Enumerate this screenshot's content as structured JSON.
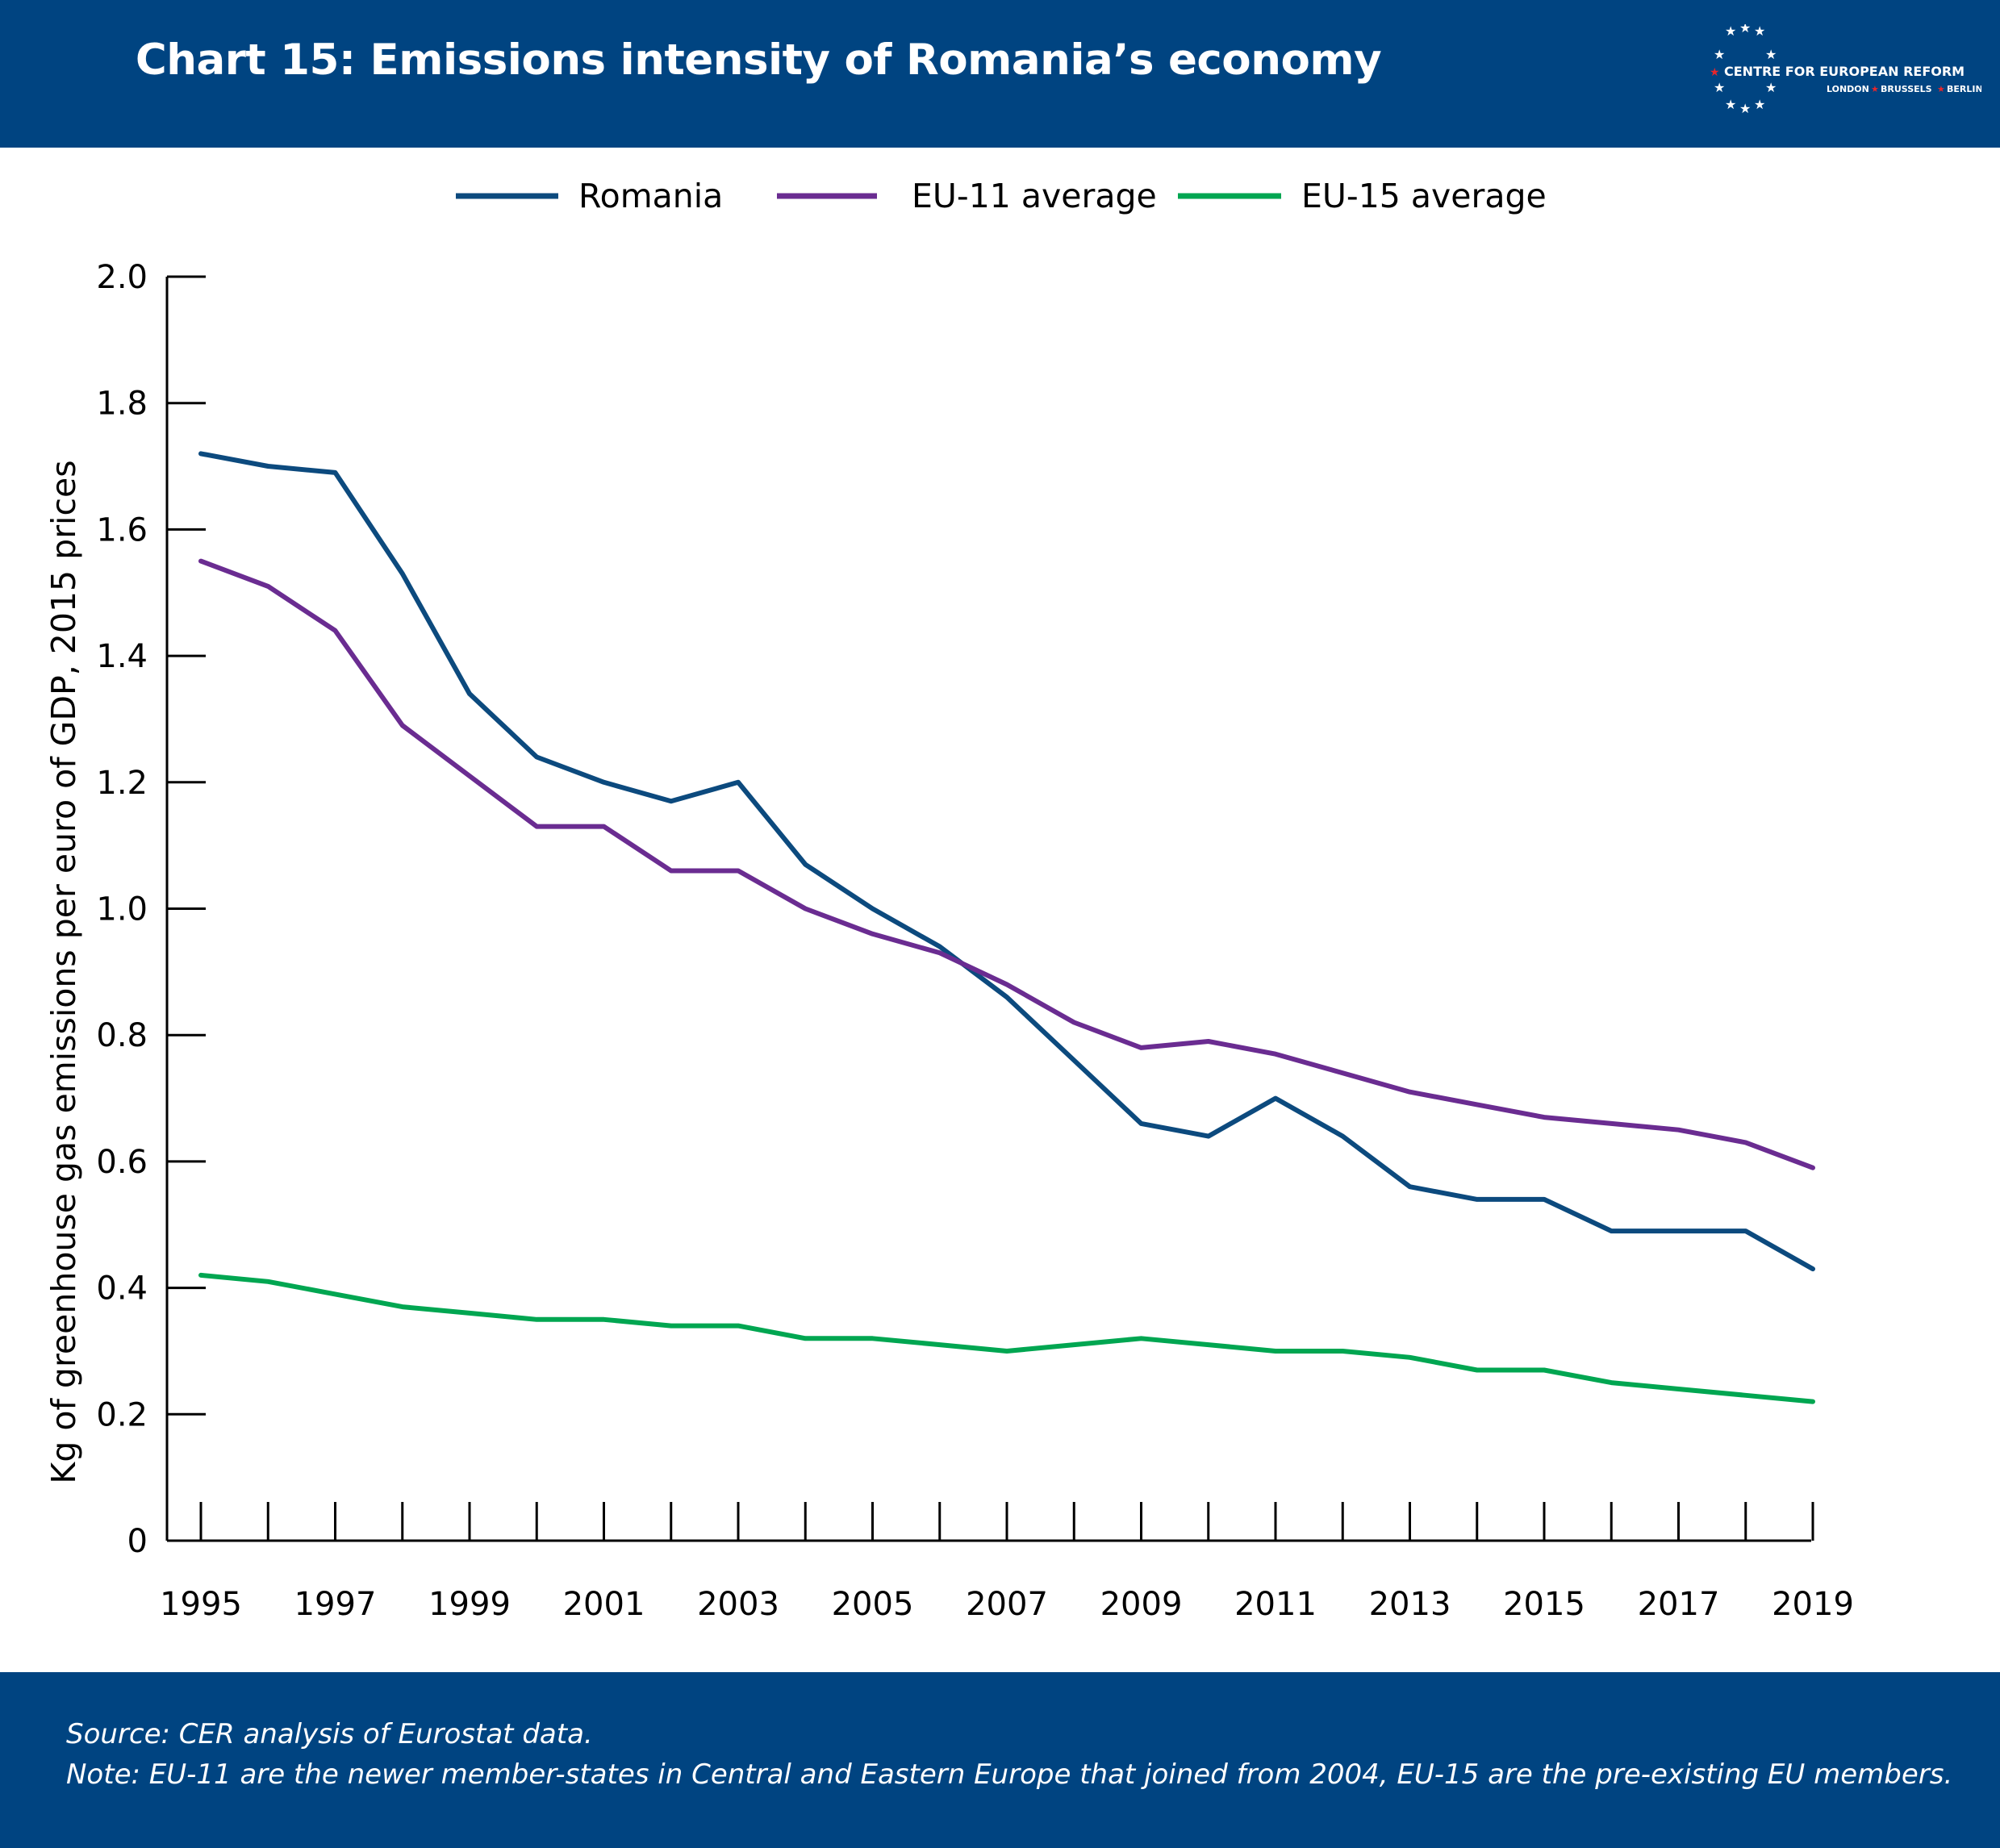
{
  "header": {
    "title": "Chart 15: Emissions intensity of Romania’s economy",
    "bg_color": "#004481"
  },
  "logo": {
    "name": "CENTRE FOR EUROPEAN REFORM",
    "cities": [
      "LONDON",
      "BRUSSELS",
      "BERLIN"
    ]
  },
  "footer": {
    "source": "Source: CER analysis of Eurostat data.",
    "note": "Note: EU-11 are the newer member-states in Central and Eastern Europe that joined from 2004, EU-15 are the pre-existing EU members."
  },
  "chart_data": {
    "type": "line",
    "title": "Chart 15: Emissions intensity of Romania’s economy",
    "xlabel": "",
    "ylabel": "Kg of greenhouse gas emissions per euro of GDP, 2015 prices",
    "ylim": [
      0,
      2.0
    ],
    "yticks": [
      "0",
      "0.2",
      "0.4",
      "0.6",
      "0.8",
      "1.0",
      "1.2",
      "1.4",
      "1.6",
      "1.8",
      "2.0"
    ],
    "xticklabels": [
      "1995",
      "1997",
      "1999",
      "2001",
      "2003",
      "2005",
      "2007",
      "2009",
      "2011",
      "2013",
      "2015",
      "2017",
      "2019"
    ],
    "grid": false,
    "legend_position": "top-center",
    "x": [
      1995,
      1996,
      1997,
      1998,
      1999,
      2000,
      2001,
      2002,
      2003,
      2004,
      2005,
      2006,
      2007,
      2008,
      2009,
      2010,
      2011,
      2012,
      2013,
      2014,
      2015,
      2016,
      2017,
      2018,
      2019
    ],
    "series": [
      {
        "name": "Romania",
        "color": "#0c4a7e",
        "values": [
          1.72,
          1.7,
          1.69,
          1.53,
          1.34,
          1.24,
          1.2,
          1.17,
          1.2,
          1.07,
          1.0,
          0.94,
          0.86,
          0.76,
          0.66,
          0.64,
          0.7,
          0.64,
          0.56,
          0.54,
          0.54,
          0.49,
          0.49,
          0.49,
          0.43
        ]
      },
      {
        "name": "EU-11 average",
        "color": "#6a2c91",
        "values": [
          1.55,
          1.51,
          1.44,
          1.29,
          1.21,
          1.13,
          1.13,
          1.06,
          1.06,
          1.0,
          0.96,
          0.93,
          0.88,
          0.82,
          0.78,
          0.79,
          0.77,
          0.74,
          0.71,
          0.69,
          0.67,
          0.66,
          0.65,
          0.63,
          0.59
        ]
      },
      {
        "name": "EU-15 average",
        "color": "#00a651",
        "values": [
          0.42,
          0.41,
          0.39,
          0.37,
          0.36,
          0.35,
          0.35,
          0.34,
          0.34,
          0.32,
          0.32,
          0.31,
          0.3,
          0.31,
          0.32,
          0.31,
          0.3,
          0.3,
          0.29,
          0.27,
          0.27,
          0.25,
          0.24,
          0.23,
          0.22
        ]
      }
    ]
  }
}
